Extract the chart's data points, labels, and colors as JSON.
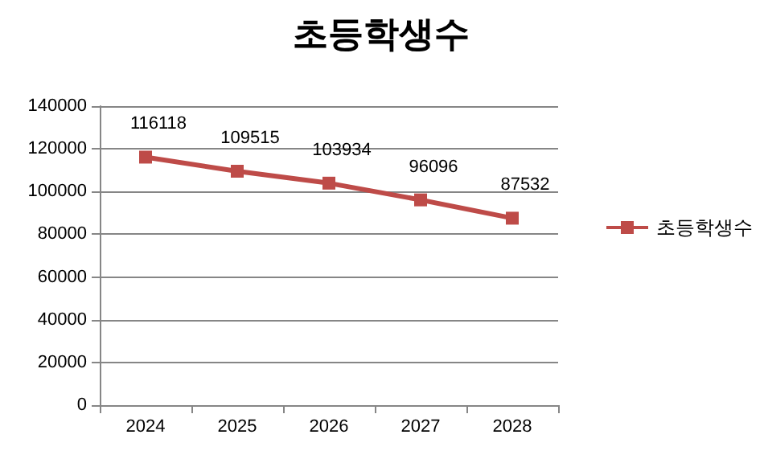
{
  "chart_data": {
    "type": "line",
    "title": "초등학생수",
    "categories": [
      "2024",
      "2025",
      "2026",
      "2027",
      "2028"
    ],
    "series": [
      {
        "name": "초등학생수",
        "color": "#be4b48",
        "values": [
          116118,
          109515,
          103934,
          96096,
          87532
        ]
      }
    ],
    "ylim": [
      0,
      140000
    ],
    "yticks": [
      0,
      20000,
      40000,
      60000,
      80000,
      100000,
      120000,
      140000
    ],
    "grid": "y",
    "legend": "right",
    "marker": "square",
    "data_labels": true
  }
}
